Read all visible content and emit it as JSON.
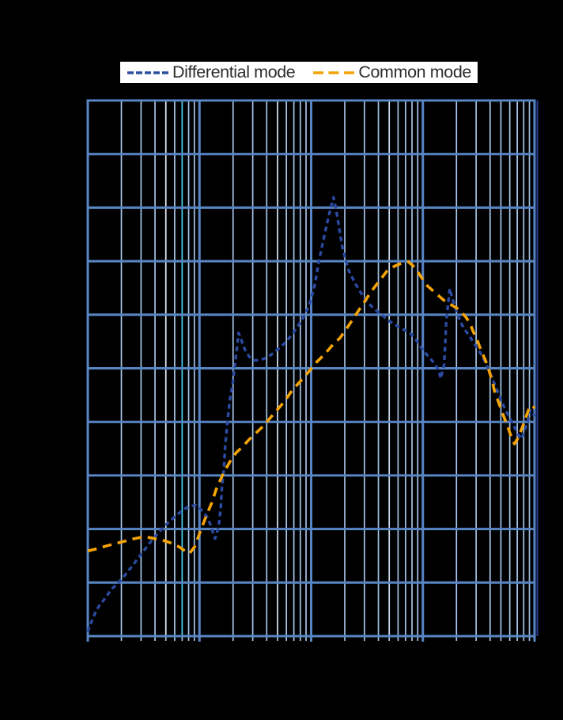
{
  "page": {
    "background": "#000000"
  },
  "legend": {
    "background": "#ffffff",
    "items": [
      {
        "label": "Differential mode",
        "color": "#2c4d9e",
        "dash_style": "short-dashes"
      },
      {
        "label": "Common mode",
        "color": "#f4a306",
        "dash_style": "long-dashes"
      }
    ]
  },
  "chart_data": {
    "type": "line",
    "title": "",
    "note": "Log-log style EMC attenuation plot. Axis tick labels and axis titles are not visible in the image (rendered black on black). X axis: logarithmic, 4 decades (relative units 0..4). Y axis: linear, 10 major divisions (relative units 0..10, bottom=0).",
    "x_axis": {
      "scale": "log",
      "decades": 4,
      "minor_steps": [
        2,
        3,
        4,
        5,
        6,
        7,
        8,
        9
      ],
      "labels_visible": false
    },
    "y_axis": {
      "scale": "linear",
      "divisions": 10,
      "labels_visible": false
    },
    "grid": {
      "major_color": "#5886c5",
      "minor_color": "#a7c5e8",
      "right_spine_color": "#2d3f9a",
      "highlight_minor_lines": [
        {
          "decade": 0,
          "step": 5,
          "color": "#e9f1fb"
        },
        {
          "decade": 0,
          "step": 7,
          "color": "#4fd3f2"
        },
        {
          "decade": 1,
          "step": 5,
          "color": "#d9e7f7"
        },
        {
          "decade": 2,
          "step": 5,
          "color": "#d9e7f7"
        }
      ]
    },
    "series": [
      {
        "name": "Differential mode",
        "color": "#2b4aa2",
        "dash": [
          6,
          4.5
        ],
        "width": 3.4,
        "points": [
          [
            0.0,
            0.08
          ],
          [
            0.03,
            0.25
          ],
          [
            0.07,
            0.45
          ],
          [
            0.1,
            0.56
          ],
          [
            0.16,
            0.72
          ],
          [
            0.21,
            0.87
          ],
          [
            0.28,
            1.01
          ],
          [
            0.35,
            1.18
          ],
          [
            0.42,
            1.37
          ],
          [
            0.5,
            1.59
          ],
          [
            0.57,
            1.78
          ],
          [
            0.65,
            1.97
          ],
          [
            0.72,
            2.12
          ],
          [
            0.79,
            2.25
          ],
          [
            0.85,
            2.35
          ],
          [
            0.91,
            2.43
          ],
          [
            0.97,
            2.44
          ],
          [
            1.02,
            2.35
          ],
          [
            1.07,
            2.22
          ],
          [
            1.1,
            2.07
          ],
          [
            1.14,
            1.82
          ],
          [
            1.17,
            2.03
          ],
          [
            1.19,
            2.37
          ],
          [
            1.2,
            2.74
          ],
          [
            1.22,
            3.15
          ],
          [
            1.23,
            3.54
          ],
          [
            1.25,
            3.99
          ],
          [
            1.27,
            4.38
          ],
          [
            1.3,
            4.75
          ],
          [
            1.32,
            5.12
          ],
          [
            1.34,
            5.46
          ],
          [
            1.35,
            5.66
          ],
          [
            1.37,
            5.57
          ],
          [
            1.39,
            5.43
          ],
          [
            1.42,
            5.29
          ],
          [
            1.45,
            5.21
          ],
          [
            1.49,
            5.15
          ],
          [
            1.54,
            5.15
          ],
          [
            1.59,
            5.19
          ],
          [
            1.64,
            5.25
          ],
          [
            1.71,
            5.37
          ],
          [
            1.78,
            5.5
          ],
          [
            1.85,
            5.69
          ],
          [
            1.92,
            5.91
          ],
          [
            1.98,
            6.16
          ],
          [
            2.03,
            6.53
          ],
          [
            2.07,
            7.01
          ],
          [
            2.12,
            7.49
          ],
          [
            2.16,
            7.87
          ],
          [
            2.19,
            8.1
          ],
          [
            2.2,
            8.19
          ],
          [
            2.22,
            8.0
          ],
          [
            2.25,
            7.63
          ],
          [
            2.28,
            7.26
          ],
          [
            2.31,
            7.01
          ],
          [
            2.34,
            6.81
          ],
          [
            2.39,
            6.6
          ],
          [
            2.44,
            6.43
          ],
          [
            2.49,
            6.26
          ],
          [
            2.56,
            6.12
          ],
          [
            2.63,
            6.0
          ],
          [
            2.7,
            5.88
          ],
          [
            2.77,
            5.79
          ],
          [
            2.84,
            5.71
          ],
          [
            2.9,
            5.63
          ],
          [
            2.95,
            5.5
          ],
          [
            3.0,
            5.34
          ],
          [
            3.05,
            5.22
          ],
          [
            3.1,
            5.1
          ],
          [
            3.14,
            4.97
          ],
          [
            3.16,
            4.81
          ],
          [
            3.19,
            5.06
          ],
          [
            3.2,
            5.46
          ],
          [
            3.21,
            5.9
          ],
          [
            3.23,
            6.26
          ],
          [
            3.24,
            6.49
          ],
          [
            3.26,
            6.34
          ],
          [
            3.28,
            6.19
          ],
          [
            3.31,
            6.01
          ],
          [
            3.34,
            5.85
          ],
          [
            3.38,
            5.71
          ],
          [
            3.43,
            5.56
          ],
          [
            3.48,
            5.4
          ],
          [
            3.53,
            5.24
          ],
          [
            3.57,
            5.06
          ],
          [
            3.62,
            4.82
          ],
          [
            3.66,
            4.62
          ],
          [
            3.7,
            4.41
          ],
          [
            3.74,
            4.22
          ],
          [
            3.79,
            4.03
          ],
          [
            3.82,
            3.9
          ],
          [
            3.85,
            3.78
          ],
          [
            3.88,
            3.68
          ],
          [
            3.91,
            3.81
          ],
          [
            3.93,
            3.96
          ],
          [
            3.95,
            4.1
          ],
          [
            3.96,
            4.22
          ],
          [
            3.98,
            4.16
          ],
          [
            4.0,
            4.11
          ]
        ]
      },
      {
        "name": "Common mode",
        "color": "#f4a306",
        "dash": [
          11.5,
          8
        ],
        "width": 3.6,
        "points": [
          [
            0.0,
            1.59
          ],
          [
            0.08,
            1.63
          ],
          [
            0.16,
            1.68
          ],
          [
            0.23,
            1.72
          ],
          [
            0.31,
            1.76
          ],
          [
            0.39,
            1.81
          ],
          [
            0.47,
            1.84
          ],
          [
            0.53,
            1.85
          ],
          [
            0.6,
            1.82
          ],
          [
            0.67,
            1.79
          ],
          [
            0.73,
            1.75
          ],
          [
            0.78,
            1.71
          ],
          [
            0.83,
            1.65
          ],
          [
            0.87,
            1.59
          ],
          [
            0.91,
            1.54
          ],
          [
            0.96,
            1.68
          ],
          [
            1.01,
            1.97
          ],
          [
            1.06,
            2.24
          ],
          [
            1.11,
            2.49
          ],
          [
            1.15,
            2.74
          ],
          [
            1.19,
            2.93
          ],
          [
            1.23,
            3.1
          ],
          [
            1.28,
            3.28
          ],
          [
            1.33,
            3.43
          ],
          [
            1.39,
            3.54
          ],
          [
            1.44,
            3.66
          ],
          [
            1.5,
            3.78
          ],
          [
            1.56,
            3.9
          ],
          [
            1.62,
            4.04
          ],
          [
            1.69,
            4.21
          ],
          [
            1.76,
            4.38
          ],
          [
            1.83,
            4.59
          ],
          [
            1.9,
            4.75
          ],
          [
            1.98,
            4.94
          ],
          [
            2.05,
            5.12
          ],
          [
            2.12,
            5.26
          ],
          [
            2.19,
            5.43
          ],
          [
            2.26,
            5.57
          ],
          [
            2.33,
            5.78
          ],
          [
            2.4,
            6.0
          ],
          [
            2.47,
            6.22
          ],
          [
            2.54,
            6.44
          ],
          [
            2.61,
            6.63
          ],
          [
            2.68,
            6.82
          ],
          [
            2.75,
            6.91
          ],
          [
            2.82,
            6.97
          ],
          [
            2.87,
            6.99
          ],
          [
            2.93,
            6.88
          ],
          [
            2.99,
            6.69
          ],
          [
            3.04,
            6.54
          ],
          [
            3.1,
            6.43
          ],
          [
            3.15,
            6.34
          ],
          [
            3.2,
            6.25
          ],
          [
            3.25,
            6.19
          ],
          [
            3.3,
            6.13
          ],
          [
            3.34,
            6.06
          ],
          [
            3.38,
            5.97
          ],
          [
            3.42,
            5.85
          ],
          [
            3.45,
            5.69
          ],
          [
            3.49,
            5.51
          ],
          [
            3.52,
            5.34
          ],
          [
            3.56,
            5.15
          ],
          [
            3.59,
            4.97
          ],
          [
            3.62,
            4.78
          ],
          [
            3.64,
            4.59
          ],
          [
            3.67,
            4.41
          ],
          [
            3.7,
            4.24
          ],
          [
            3.73,
            4.07
          ],
          [
            3.76,
            3.91
          ],
          [
            3.78,
            3.79
          ],
          [
            3.8,
            3.68
          ],
          [
            3.82,
            3.59
          ],
          [
            3.85,
            3.69
          ],
          [
            3.88,
            3.84
          ],
          [
            3.91,
            4.01
          ],
          [
            3.93,
            4.13
          ],
          [
            3.95,
            4.24
          ],
          [
            3.97,
            4.31
          ],
          [
            3.99,
            4.28
          ],
          [
            4.0,
            4.25
          ]
        ]
      }
    ]
  }
}
